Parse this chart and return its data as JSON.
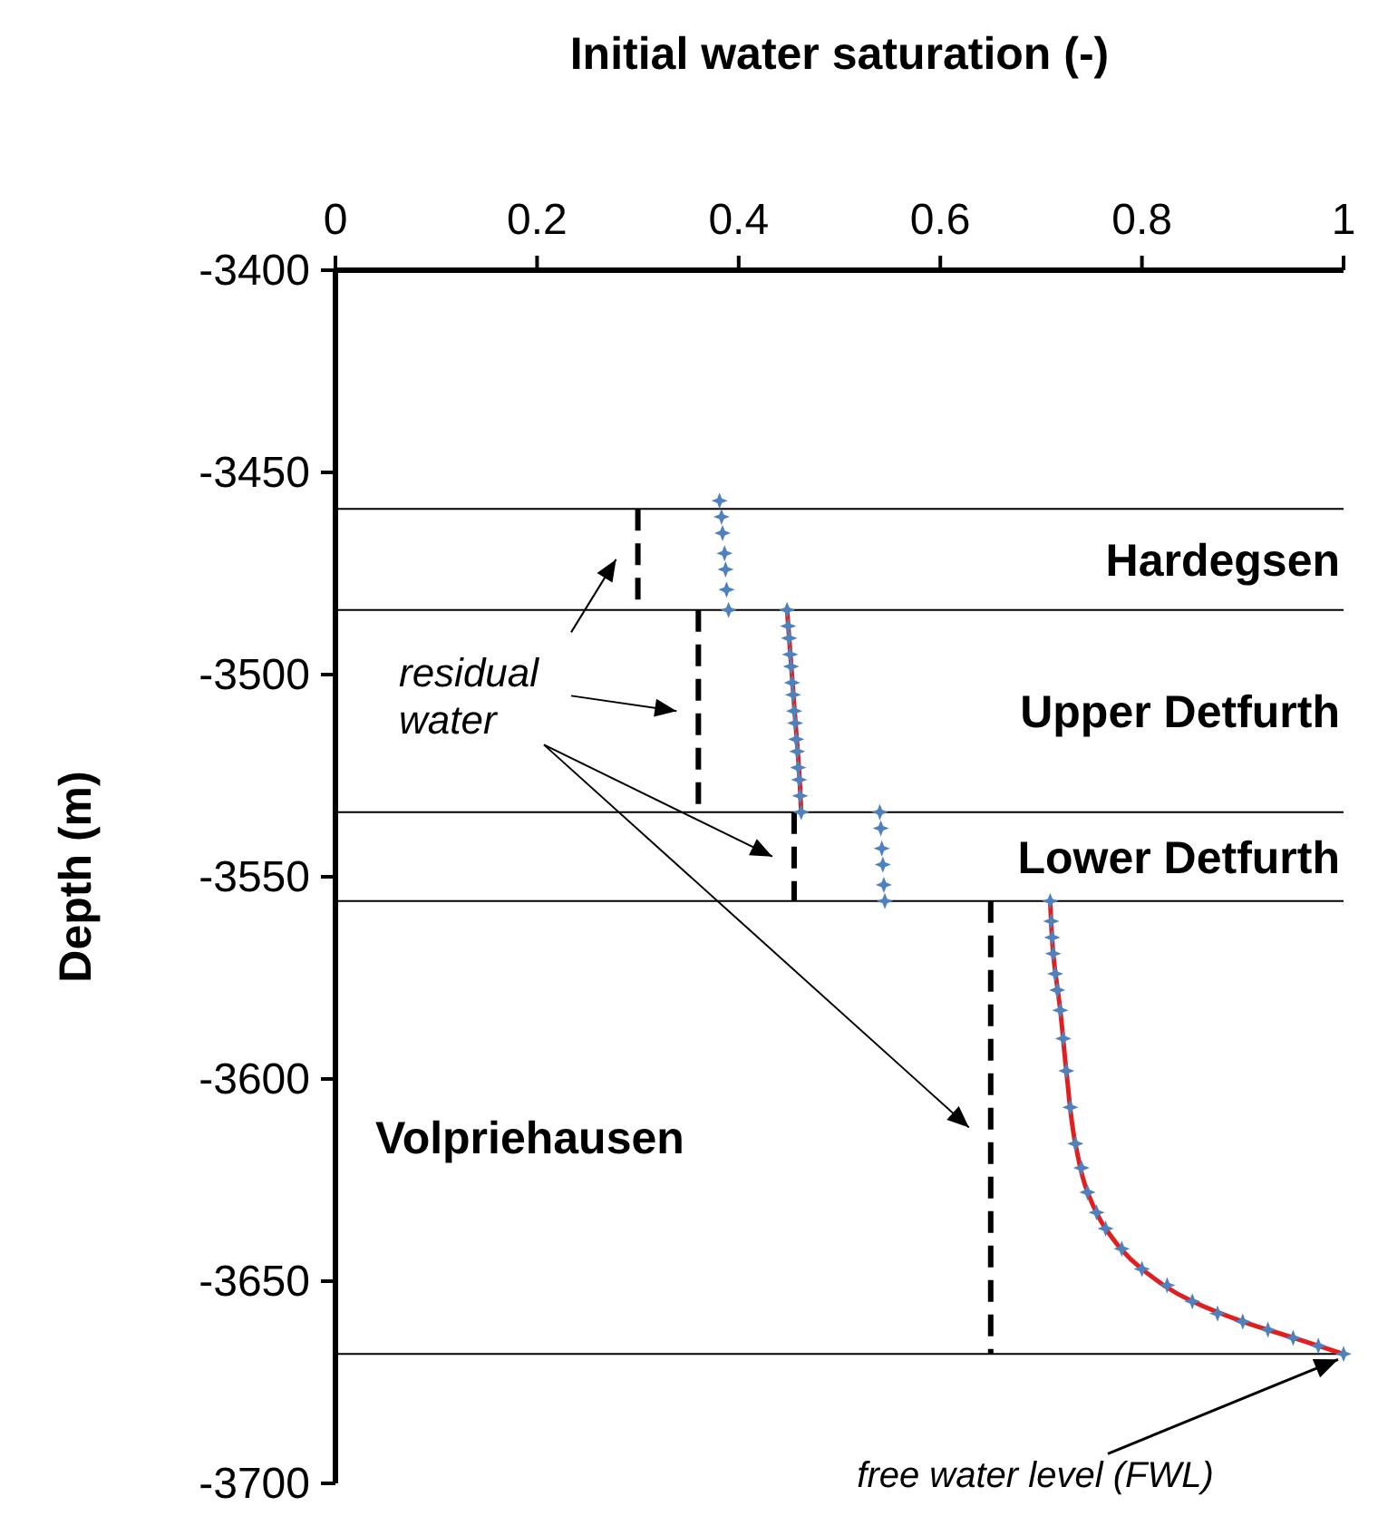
{
  "chart_data": {
    "type": "scatter",
    "xlabel": "Initial water saturation (-)",
    "ylabel": "Depth (m)",
    "xlim": [
      0,
      1
    ],
    "xticks": [
      0,
      0.2,
      0.4,
      0.6,
      0.8,
      1
    ],
    "ylim": [
      -3700,
      -3400
    ],
    "yticks": [
      -3400,
      -3450,
      -3500,
      -3550,
      -3600,
      -3650,
      -3700
    ],
    "grid": false,
    "ref_lines": [
      {
        "axis": "y",
        "value": -3459
      },
      {
        "axis": "y",
        "value": -3484,
        "label": "Hardegsen"
      },
      {
        "axis": "y",
        "value": -3534,
        "label": "Upper Detfurth"
      },
      {
        "axis": "y",
        "value": -3556,
        "label": "Lower Detfurth"
      },
      {
        "axis": "y",
        "value": -3668
      }
    ],
    "annotations": [
      "Volpriehausen",
      "residual water",
      {
        "text": "free water level (FWL)",
        "x": 1,
        "y": -3668
      }
    ],
    "series": [
      {
        "type": "line",
        "color": "#000000",
        "line_style": "dashed",
        "marker": "none",
        "x": [
          0.3,
          0.3
        ],
        "values": [
          -3459,
          -3484
        ]
      },
      {
        "type": "line",
        "color": "#000000",
        "line_style": "dashed",
        "marker": "none",
        "x": [
          0.36,
          0.36
        ],
        "values": [
          -3484,
          -3534
        ]
      },
      {
        "type": "line",
        "color": "#000000",
        "line_style": "dashed",
        "marker": "none",
        "x": [
          0.455,
          0.455
        ],
        "values": [
          -3534,
          -3556
        ]
      },
      {
        "type": "line",
        "color": "#000000",
        "line_style": "dashed",
        "marker": "none",
        "x": [
          0.65,
          0.65
        ],
        "values": [
          -3556,
          -3668
        ]
      },
      {
        "type": "line",
        "color": "#e02020",
        "line_style": "solid",
        "marker": "none",
        "x": [
          0.448,
          0.451,
          0.454,
          0.457,
          0.46,
          0.462
        ],
        "values": [
          -3484,
          -3494,
          -3504,
          -3514,
          -3524,
          -3534
        ]
      },
      {
        "type": "line",
        "color": "#e02020",
        "line_style": "solid",
        "marker": "none",
        "x": [
          0.709,
          0.712,
          0.719,
          0.725,
          0.734,
          0.746,
          0.764,
          0.8,
          0.85,
          0.9,
          0.95,
          1
        ],
        "values": [
          -3556,
          -3569,
          -3583,
          -3598,
          -3616,
          -3628,
          -3637,
          -3647,
          -3655,
          -3660,
          -3664,
          -3668
        ]
      },
      {
        "color": "#4f81bd",
        "marker": "star",
        "x": [
          0.381,
          0.383,
          0.384,
          0.386,
          0.387,
          0.388,
          0.39
        ],
        "values": [
          -3457,
          -3461,
          -3465,
          -3470,
          -3474,
          -3479,
          -3484
        ]
      },
      {
        "color": "#4f81bd",
        "marker": "star",
        "x": [
          0.448,
          0.449,
          0.45,
          0.451,
          0.452,
          0.453,
          0.454,
          0.455,
          0.456,
          0.457,
          0.458,
          0.459,
          0.46,
          0.461,
          0.462
        ],
        "values": [
          -3484,
          -3488,
          -3491,
          -3495,
          -3498,
          -3502,
          -3505,
          -3509,
          -3512,
          -3516,
          -3519,
          -3523,
          -3526,
          -3530,
          -3534
        ]
      },
      {
        "color": "#4f81bd",
        "marker": "star",
        "x": [
          0.54,
          0.541,
          0.542,
          0.543,
          0.544,
          0.545
        ],
        "values": [
          -3534,
          -3538,
          -3543,
          -3547,
          -3552,
          -3556
        ]
      },
      {
        "color": "#4f81bd",
        "marker": "star",
        "x": [
          0.709,
          0.71,
          0.711,
          0.712,
          0.714,
          0.716,
          0.719,
          0.722,
          0.725,
          0.729,
          0.734,
          0.74,
          0.746,
          0.755,
          0.764,
          0.78,
          0.8,
          0.825,
          0.85,
          0.875,
          0.9,
          0.925,
          0.95,
          0.975,
          1
        ],
        "values": [
          -3556,
          -3561,
          -3565,
          -3569,
          -3574,
          -3578,
          -3583,
          -3590,
          -3598,
          -3607,
          -3616,
          -3622,
          -3628,
          -3633,
          -3637,
          -3642,
          -3647,
          -3651,
          -3655,
          -3658,
          -3660,
          -3662,
          -3664,
          -3666,
          -3668
        ]
      }
    ]
  }
}
